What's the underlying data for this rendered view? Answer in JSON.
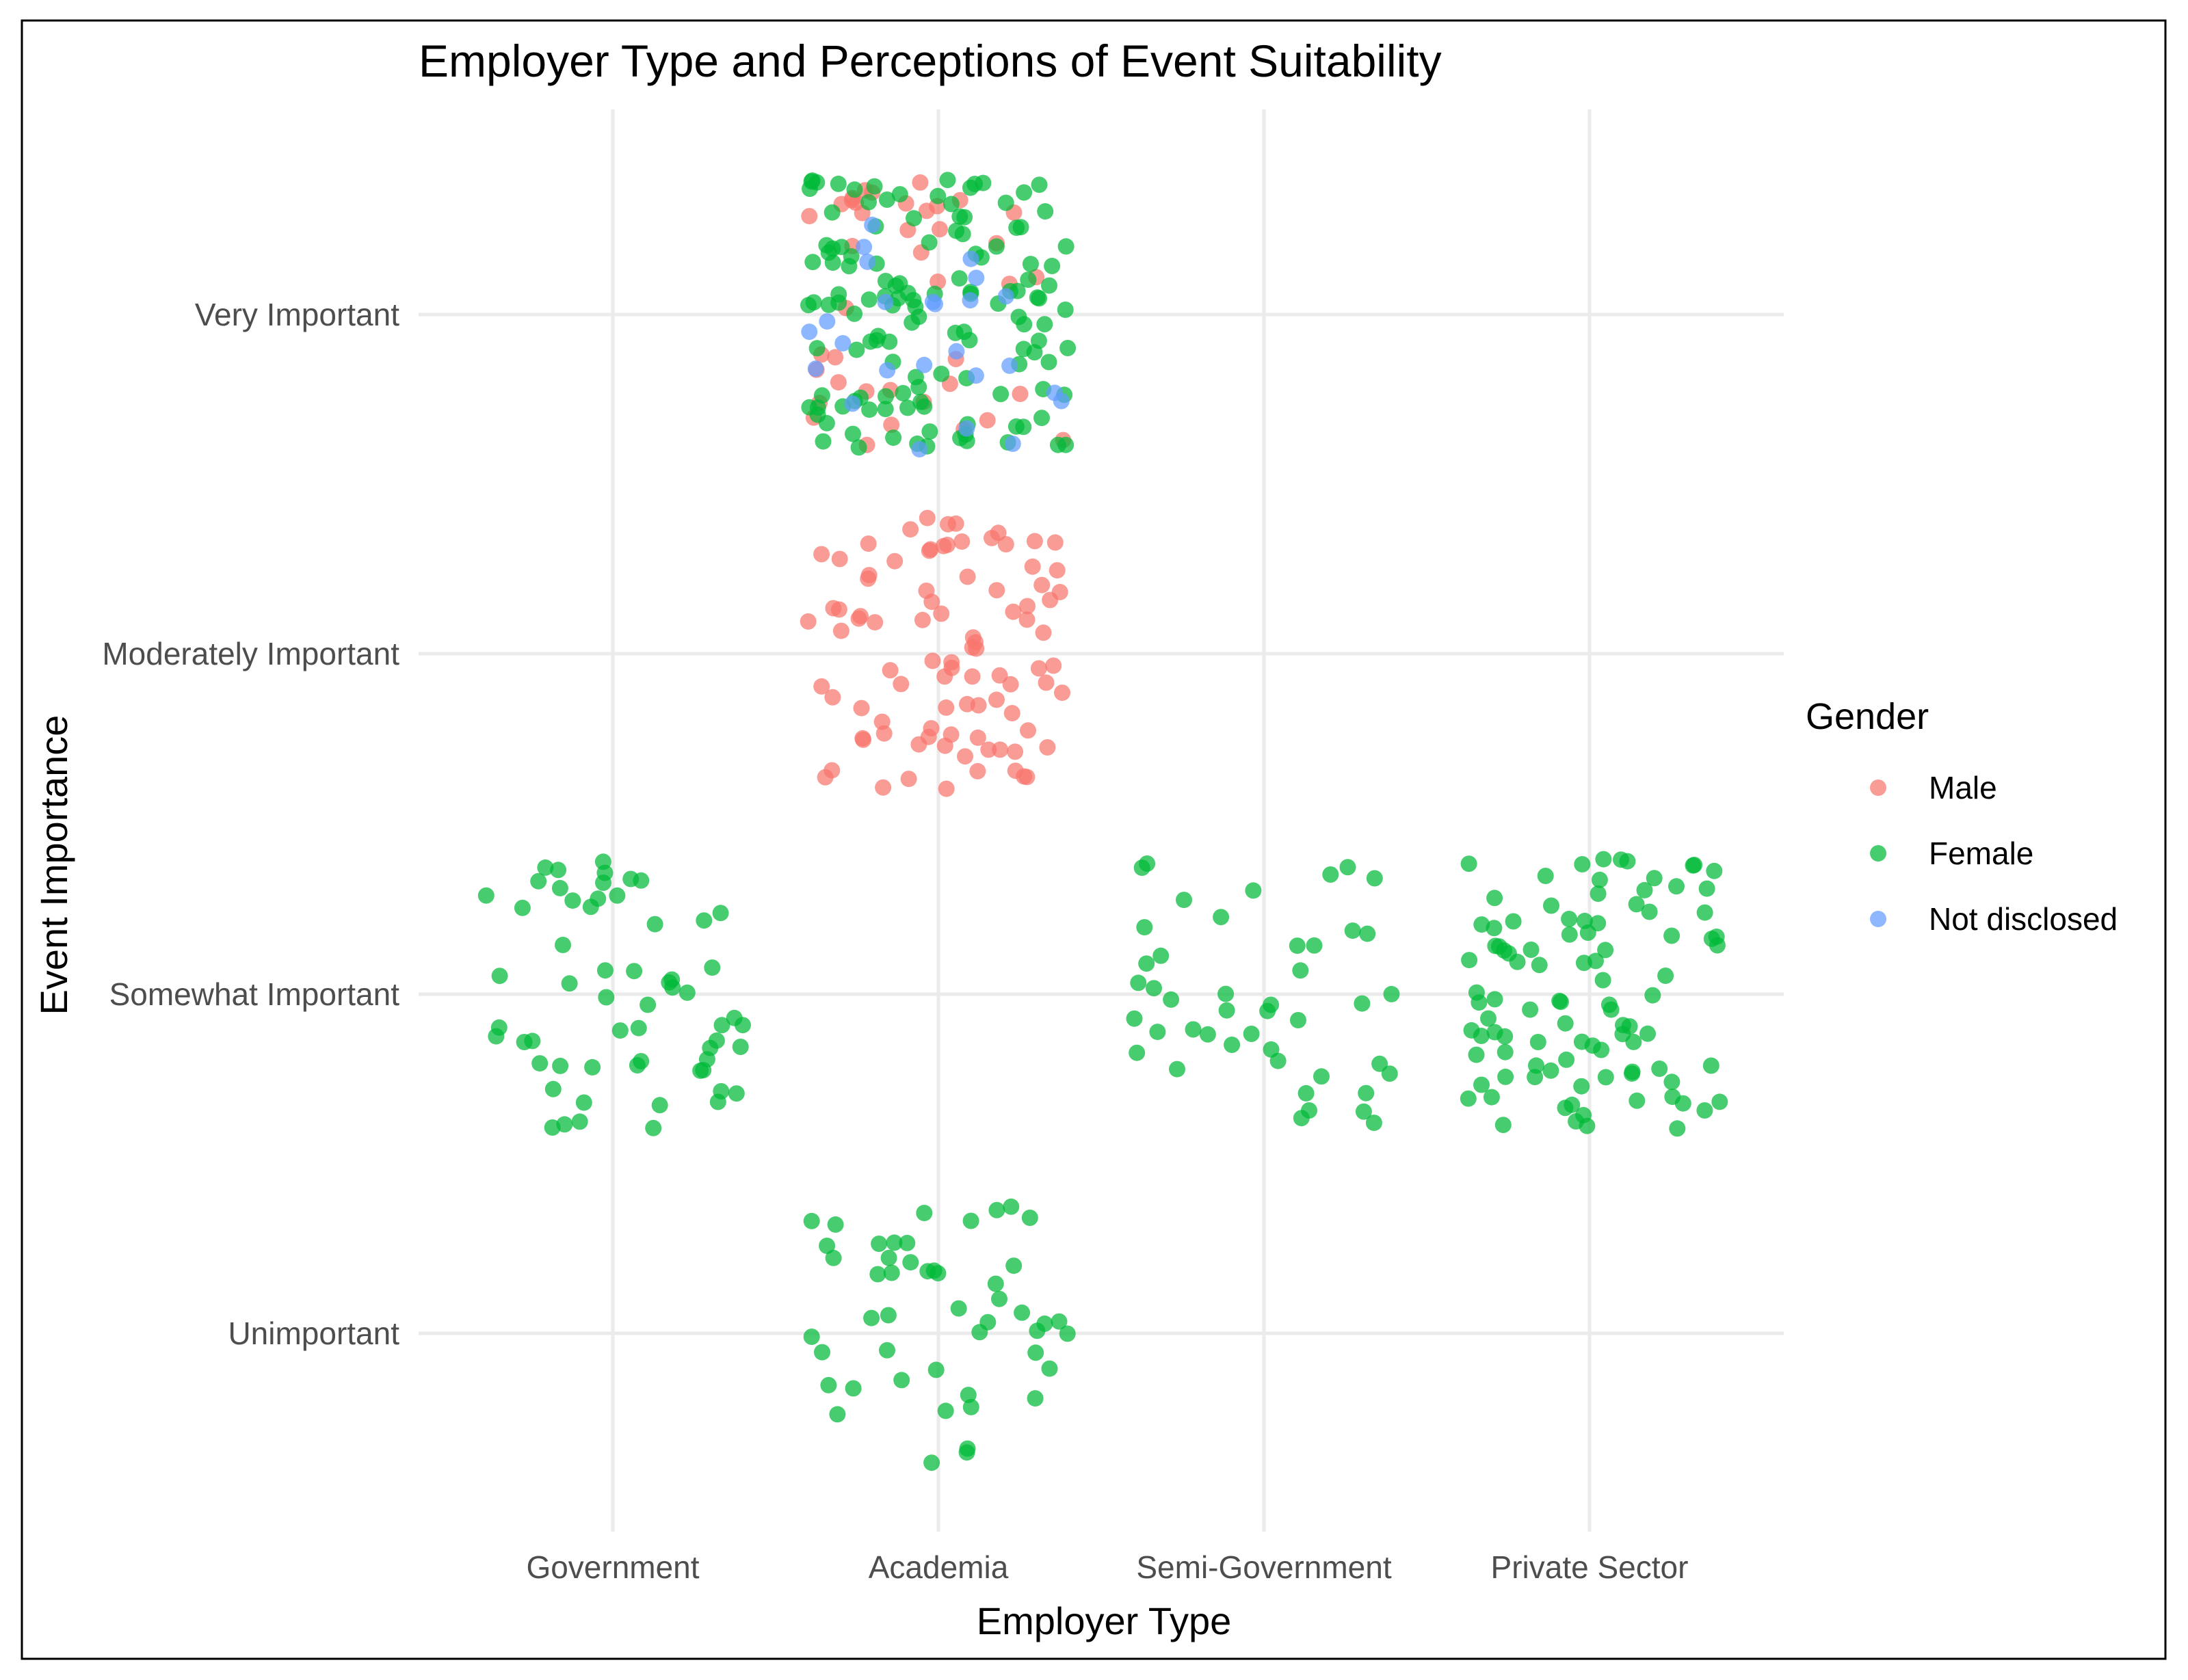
{
  "chart_data": {
    "type": "scatter",
    "title": "Employer Type and Perceptions of Event Suitability",
    "xlabel": "Employer Type",
    "ylabel": "Event Importance",
    "categories": [
      "Government",
      "Academia",
      "Semi-Government",
      "Private Sector"
    ],
    "y_categories": [
      "Unimportant",
      "Somewhat Important",
      "Moderately Important",
      "Very Important"
    ],
    "jitter": {
      "x": 0.4,
      "y": 0.4
    },
    "grid": true,
    "legend": {
      "title": "Gender",
      "position": "right"
    },
    "series": [
      {
        "name": "Male",
        "color": "#F8766D",
        "groups": [
          {
            "x": "Academia",
            "y": "Very Important",
            "count": 40
          },
          {
            "x": "Academia",
            "y": "Moderately Important",
            "count": 92
          }
        ]
      },
      {
        "name": "Female",
        "color": "#00BA38",
        "groups": [
          {
            "x": "Academia",
            "y": "Very Important",
            "count": 133
          },
          {
            "x": "Government",
            "y": "Somewhat Important",
            "count": 60
          },
          {
            "x": "Semi-Government",
            "y": "Somewhat Important",
            "count": 45
          },
          {
            "x": "Private Sector",
            "y": "Somewhat Important",
            "count": 98
          },
          {
            "x": "Academia",
            "y": "Unimportant",
            "count": 49
          }
        ]
      },
      {
        "name": "Not disclosed",
        "color": "#619CFF",
        "groups": [
          {
            "x": "Academia",
            "y": "Very Important",
            "count": 25
          }
        ]
      }
    ]
  }
}
